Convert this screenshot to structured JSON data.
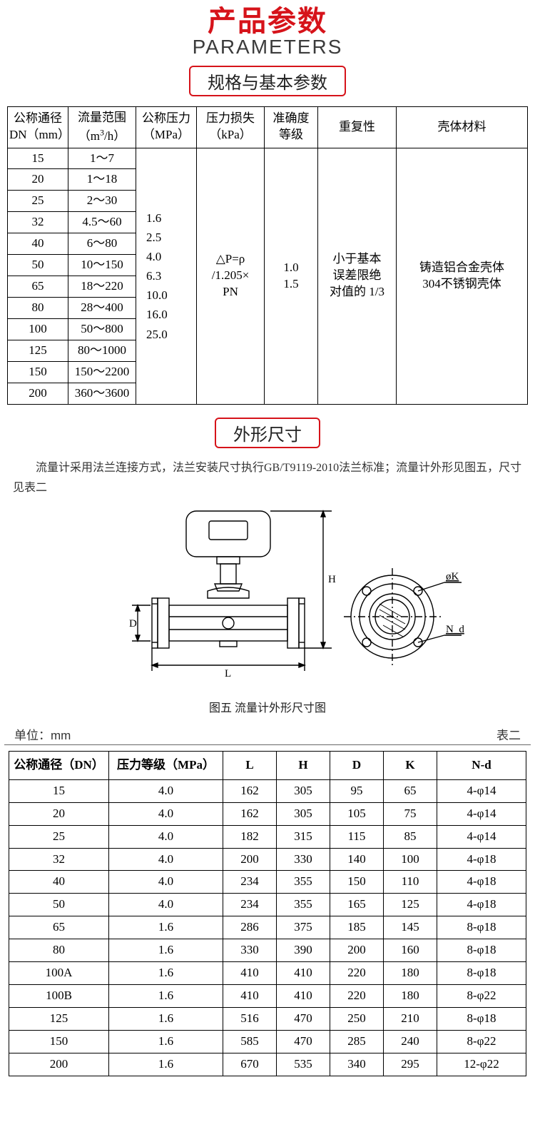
{
  "header": {
    "title_cn": "产品参数",
    "title_en": "PARAMETERS",
    "subheader_spec": "规格与基本参数",
    "subheader_dim": "外形尺寸"
  },
  "colors": {
    "accent_red": "#d6131a",
    "text_dark": "#3b3b3b",
    "border_black": "#000000",
    "background": "#ffffff"
  },
  "table1": {
    "headers": {
      "dn": "公称通径\nDN（mm）",
      "flow": "流量范围\n（m³/h）",
      "pressure": "公称压力\n（MPa）",
      "loss": "压力损失\n（kPa）",
      "accuracy": "准确度\n等级",
      "repeat": "重复性",
      "material": "壳体材料"
    },
    "dn_rows": [
      {
        "dn": "15",
        "flow": "1～7"
      },
      {
        "dn": "20",
        "flow": "1～18"
      },
      {
        "dn": "25",
        "flow": "2～30"
      },
      {
        "dn": "32",
        "flow": "4.5～60"
      },
      {
        "dn": "40",
        "flow": "6～80"
      },
      {
        "dn": "50",
        "flow": "10～150"
      },
      {
        "dn": "65",
        "flow": "18～220"
      },
      {
        "dn": "80",
        "flow": "28～400"
      },
      {
        "dn": "100",
        "flow": "50～800"
      },
      {
        "dn": "125",
        "flow": "80～1000"
      },
      {
        "dn": "150",
        "flow": "150～2200"
      },
      {
        "dn": "200",
        "flow": "360～3600"
      }
    ],
    "merged": {
      "pressure": "1.6\n2.5\n4.0\n6.3\n10.0\n16.0\n25.0",
      "loss": "△P=ρ\n/1.205×\nPN",
      "accuracy": "1.0\n1.5",
      "repeat": "小于基本\n误差限绝\n对值的 1/3",
      "material": "铸造铝合金壳体\n304不锈钢壳体"
    }
  },
  "dim_note": "流量计采用法兰连接方式，法兰安装尺寸执行GB/T9119-2010法兰标准；流量计外形见图五，尺寸见表二",
  "diagram": {
    "caption": "图五  流量计外形尺寸图",
    "labels": {
      "L": "L",
      "H": "H",
      "D": "D",
      "phiK": "øK",
      "Nd": "N_d"
    },
    "stroke_width": 1.4,
    "stroke_color": "#000000"
  },
  "table2": {
    "unit_label": "单位：mm",
    "table_label": "表二",
    "headers": {
      "dn": "公称通径（DN）",
      "mpa": "压力等级（MPa）",
      "L": "L",
      "H": "H",
      "D": "D",
      "K": "K",
      "Nd": "N-d"
    },
    "rows": [
      {
        "dn": "15",
        "mpa": "4.0",
        "L": "162",
        "H": "305",
        "D": "95",
        "K": "65",
        "Nd": "4-φ14"
      },
      {
        "dn": "20",
        "mpa": "4.0",
        "L": "162",
        "H": "305",
        "D": "105",
        "K": "75",
        "Nd": "4-φ14"
      },
      {
        "dn": "25",
        "mpa": "4.0",
        "L": "182",
        "H": "315",
        "D": "115",
        "K": "85",
        "Nd": "4-φ14"
      },
      {
        "dn": "32",
        "mpa": "4.0",
        "L": "200",
        "H": "330",
        "D": "140",
        "K": "100",
        "Nd": "4-φ18"
      },
      {
        "dn": "40",
        "mpa": "4.0",
        "L": "234",
        "H": "355",
        "D": "150",
        "K": "110",
        "Nd": "4-φ18"
      },
      {
        "dn": "50",
        "mpa": "4.0",
        "L": "234",
        "H": "355",
        "D": "165",
        "K": "125",
        "Nd": "4-φ18"
      },
      {
        "dn": "65",
        "mpa": "1.6",
        "L": "286",
        "H": "375",
        "D": "185",
        "K": "145",
        "Nd": "8-φ18"
      },
      {
        "dn": "80",
        "mpa": "1.6",
        "L": "330",
        "H": "390",
        "D": "200",
        "K": "160",
        "Nd": "8-φ18"
      },
      {
        "dn": "100A",
        "mpa": "1.6",
        "L": "410",
        "H": "410",
        "D": "220",
        "K": "180",
        "Nd": "8-φ18"
      },
      {
        "dn": "100B",
        "mpa": "1.6",
        "L": "410",
        "H": "410",
        "D": "220",
        "K": "180",
        "Nd": "8-φ22"
      },
      {
        "dn": "125",
        "mpa": "1.6",
        "L": "516",
        "H": "470",
        "D": "250",
        "K": "210",
        "Nd": "8-φ18"
      },
      {
        "dn": "150",
        "mpa": "1.6",
        "L": "585",
        "H": "470",
        "D": "285",
        "K": "240",
        "Nd": "8-φ22"
      },
      {
        "dn": "200",
        "mpa": "1.6",
        "L": "670",
        "H": "535",
        "D": "340",
        "K": "295",
        "Nd": "12-φ22"
      }
    ]
  }
}
